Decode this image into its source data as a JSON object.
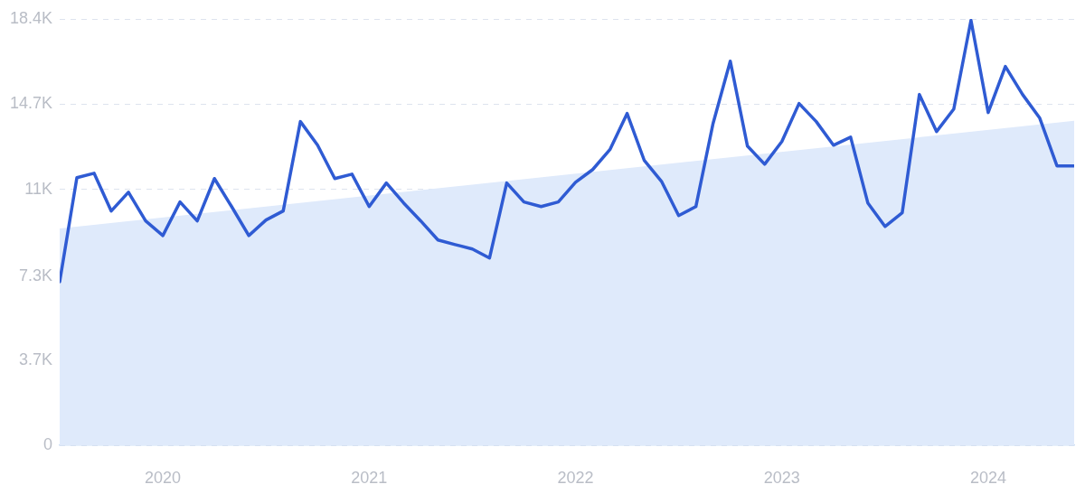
{
  "chart_data": {
    "type": "line",
    "x": [
      "2019-07",
      "2019-08",
      "2019-09",
      "2019-10",
      "2019-11",
      "2019-12",
      "2020-01",
      "2020-02",
      "2020-03",
      "2020-04",
      "2020-05",
      "2020-06",
      "2020-07",
      "2020-08",
      "2020-09",
      "2020-10",
      "2020-11",
      "2020-12",
      "2021-01",
      "2021-02",
      "2021-03",
      "2021-04",
      "2021-05",
      "2021-06",
      "2021-07",
      "2021-08",
      "2021-09",
      "2021-10",
      "2021-11",
      "2021-12",
      "2022-01",
      "2022-02",
      "2022-03",
      "2022-04",
      "2022-05",
      "2022-06",
      "2022-07",
      "2022-08",
      "2022-09",
      "2022-10",
      "2022-11",
      "2022-12",
      "2023-01",
      "2023-02",
      "2023-03",
      "2023-04",
      "2023-05",
      "2023-06",
      "2023-07",
      "2023-08",
      "2023-09",
      "2023-10",
      "2023-11",
      "2023-12",
      "2024-01",
      "2024-02",
      "2024-03",
      "2024-04",
      "2024-05",
      "2024-06"
    ],
    "series": [
      {
        "type": "area",
        "color": "#dfeafb",
        "x": [
          "2019-07",
          "2024-06"
        ],
        "values": [
          9360,
          14000
        ]
      },
      {
        "type": "line",
        "color": "#2f5bd3",
        "values": [
          7060,
          11550,
          11740,
          10110,
          10920,
          9680,
          9050,
          10500,
          9680,
          11510,
          10300,
          9050,
          9720,
          10110,
          13970,
          12950,
          11510,
          11700,
          10300,
          11320,
          10460,
          9680,
          8860,
          8660,
          8470,
          8080,
          11320,
          10500,
          10300,
          10500,
          11350,
          11900,
          12760,
          14320,
          12290,
          11390,
          9910,
          10300,
          13890,
          16580,
          12910,
          12130,
          13110,
          14750,
          13970,
          12950,
          13300,
          10460,
          9440,
          10030,
          15140,
          13540,
          14510,
          18340,
          14360,
          16350,
          15140,
          14120,
          12060,
          12060
        ]
      }
    ],
    "xlim": [
      "2019-07",
      "2024-06"
    ],
    "xticks": [
      "2020",
      "2021",
      "2022",
      "2023",
      "2024"
    ],
    "ylim": [
      0,
      18400
    ],
    "yticks": [
      0,
      {
        "value": 3680,
        "label": "3.7K"
      },
      {
        "value": 7300,
        "label": "7.3K"
      },
      {
        "value": 11040,
        "label": "11K"
      },
      {
        "value": 14720,
        "label": "14.7K"
      },
      {
        "value": 18400,
        "label": "18.4K"
      }
    ],
    "grid": "y"
  }
}
